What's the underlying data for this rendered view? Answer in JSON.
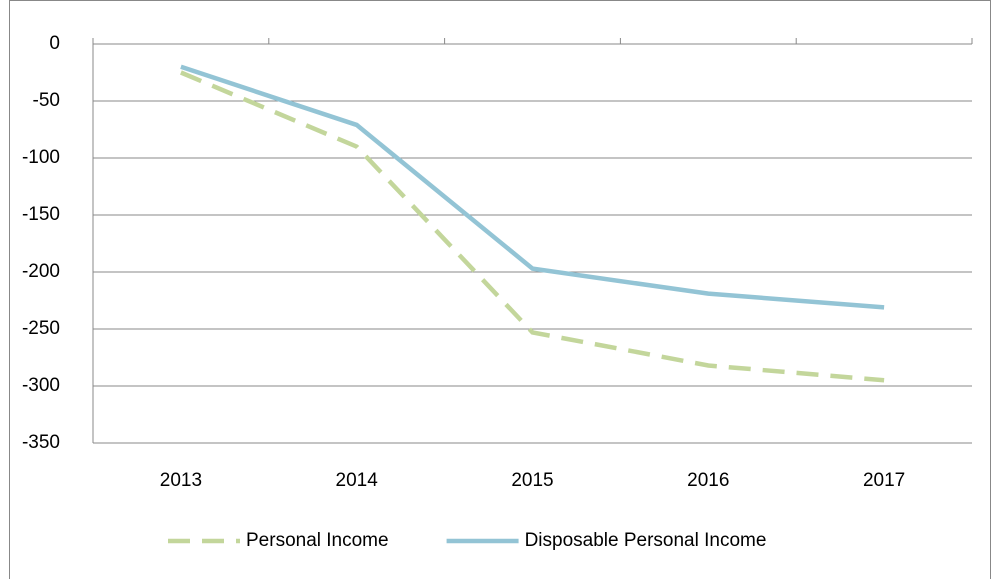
{
  "chart_data": {
    "type": "line",
    "categories": [
      "2013",
      "2014",
      "2015",
      "2016",
      "2017"
    ],
    "series": [
      {
        "name": "Personal Income",
        "color": "#c3d69b",
        "dashed": true,
        "values": [
          -25,
          -90,
          -253,
          -282,
          -295
        ]
      },
      {
        "name": "Disposable Personal Income",
        "color": "#93c4d5",
        "dashed": false,
        "values": [
          -20,
          -71,
          -197,
          -219,
          -231
        ]
      }
    ],
    "ylim": [
      -350,
      0
    ],
    "yticks": [
      0,
      -50,
      -100,
      -150,
      -200,
      -250,
      -300,
      -350
    ],
    "grid": true,
    "legend": "bottom"
  }
}
